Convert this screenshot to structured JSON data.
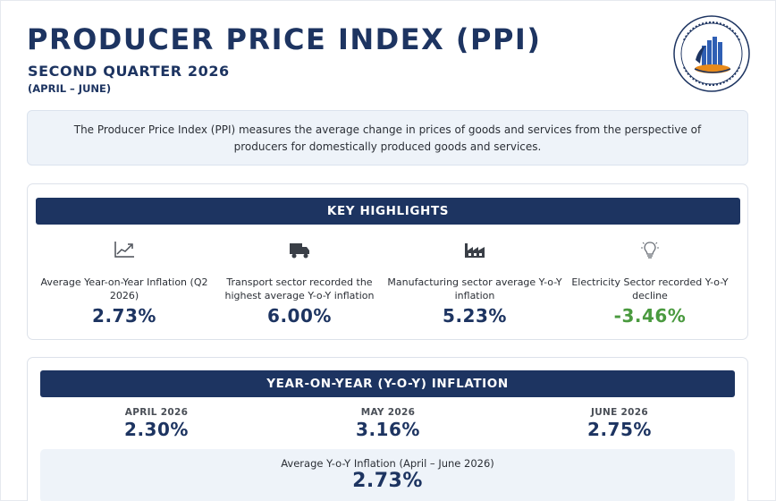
{
  "header": {
    "title": "PRODUCER PRICE INDEX (PPI)",
    "subtitle": "SECOND QUARTER 2026",
    "period": "(APRIL – JUNE)",
    "logo_icon": "national-statistics-bureau-logo"
  },
  "intro": "The Producer Price Index (PPI) measures the average change in prices of goods and services from the perspective of producers for domestically produced goods and services.",
  "highlights": {
    "heading": "KEY HIGHLIGHTS",
    "items": [
      {
        "icon": "line-chart-icon",
        "label": "Average Year-on-Year Inflation (Q2 2026)",
        "value": "2.73%"
      },
      {
        "icon": "truck-icon",
        "label": "Transport sector recorded the highest average Y-o-Y inflation",
        "value": "6.00%"
      },
      {
        "icon": "factory-icon",
        "label": "Manufacturing sector average Y-o-Y inflation",
        "value": "5.23%"
      },
      {
        "icon": "lightbulb-icon",
        "label": "Electricity Sector recorded Y-o-Y decline",
        "value": "-3.46%"
      }
    ]
  },
  "yoy": {
    "heading": "YEAR-ON-YEAR (Y-O-Y) INFLATION",
    "months": [
      {
        "label": "APRIL 2026",
        "value": "2.30%"
      },
      {
        "label": "MAY 2026",
        "value": "3.16%"
      },
      {
        "label": "JUNE 2026",
        "value": "2.75%"
      }
    ],
    "average_label": "Average Y-o-Y Inflation (April – June 2026)",
    "average_value": "2.73%"
  },
  "colors": {
    "navy": "#1d3461",
    "negative": "#4a9a3f",
    "panel": "#eef3f9"
  }
}
